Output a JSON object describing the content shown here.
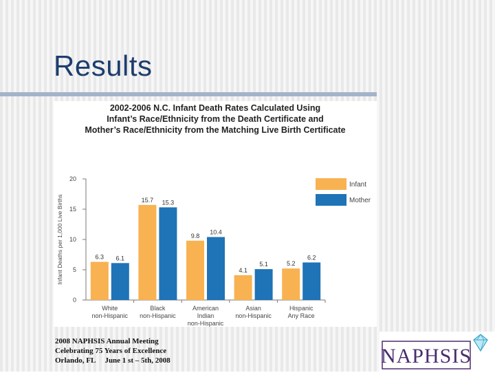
{
  "slide": {
    "title": "Results",
    "footer": {
      "line1": "2008 NAPHSIS Annual Meeting",
      "line2": "Celebrating 75 Years of Excellence",
      "line3_city": "Orlando, FL",
      "line3_dates": "June 1 st – 5th, 2008"
    },
    "logo_text": "NAPHSIS"
  },
  "colors": {
    "infant": "#f8b252",
    "mother": "#1f73b7",
    "title": "#1d3d6e",
    "axis": "#777777"
  },
  "chart_data": {
    "type": "bar",
    "title_lines": [
      "2002-2006 N.C. Infant Death Rates Calculated Using",
      "Infant’s Race/Ethnicity from the Death Certificate and",
      "Mother’s Race/Ethnicity from the Matching Live Birth Certificate"
    ],
    "ylabel": "Infant Deaths per 1,000 Live Births",
    "ylim": [
      0,
      20
    ],
    "yticks": [
      "0",
      "5",
      "10",
      "15",
      "20"
    ],
    "categories": [
      [
        "White",
        "non-Hispanic"
      ],
      [
        "Black",
        "non-Hispanic"
      ],
      [
        "American",
        "Indian",
        "non-Hispanic"
      ],
      [
        "Asian",
        "non-Hispanic"
      ],
      [
        "Hispanic",
        "Any Race"
      ]
    ],
    "series": [
      {
        "name": "Infant",
        "values": [
          6.3,
          15.7,
          9.8,
          4.1,
          5.2
        ]
      },
      {
        "name": "Mother",
        "values": [
          6.1,
          15.3,
          10.4,
          5.1,
          6.2
        ]
      }
    ],
    "legend_position": "top-right"
  }
}
